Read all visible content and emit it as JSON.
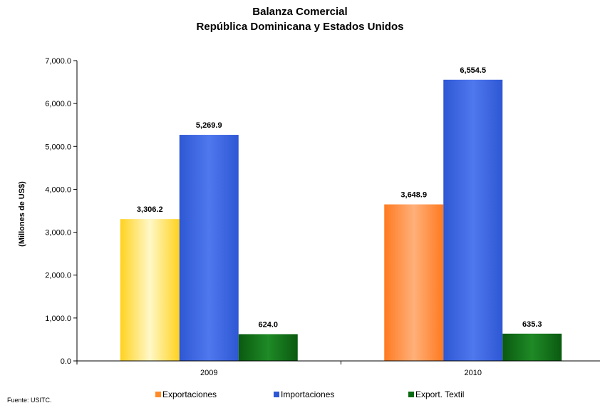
{
  "chart_data": {
    "type": "bar",
    "title": "Balanza Comercial",
    "subtitle": "República Dominicana y Estados Unidos",
    "ylabel": "(Millones de US$)",
    "xlabel": "",
    "categories": [
      "2009",
      "2010"
    ],
    "series": [
      {
        "name": "Exportaciones",
        "values": [
          3306.2,
          3648.9
        ],
        "value_labels": [
          "3,306.2",
          "3,648.9"
        ],
        "colors": [
          "#ffd21f",
          "#ff7a1f"
        ],
        "highlight_colors": [
          "#fff8c8",
          "#ffb07a"
        ]
      },
      {
        "name": "Importaciones",
        "values": [
          5269.9,
          6554.5
        ],
        "value_labels": [
          "5,269.9",
          "6,554.5"
        ],
        "colors": [
          "#2e57d4",
          "#2e57d4"
        ],
        "highlight_colors": [
          "#4f78ee",
          "#4f78ee"
        ]
      },
      {
        "name": "Export. Textil",
        "values": [
          624.0,
          635.3
        ],
        "value_labels": [
          "624.0",
          "635.3"
        ],
        "colors": [
          "#0a5a10",
          "#0a5a10"
        ],
        "highlight_colors": [
          "#1f8a26",
          "#1f8a26"
        ]
      }
    ],
    "legend_colors": [
      "#ff8a2a",
      "#2e57d4",
      "#0a6a12"
    ],
    "ylim": [
      0,
      7000
    ],
    "yticks": [
      0,
      1000,
      2000,
      3000,
      4000,
      5000,
      6000,
      7000
    ],
    "ytick_labels": [
      "0.0",
      "1,000.0",
      "2,000.0",
      "3,000.0",
      "4,000.0",
      "5,000.0",
      "6,000.0",
      "7,000.0"
    ],
    "grid": false,
    "legend_position": "bottom"
  },
  "source": "Fuente: USITC."
}
